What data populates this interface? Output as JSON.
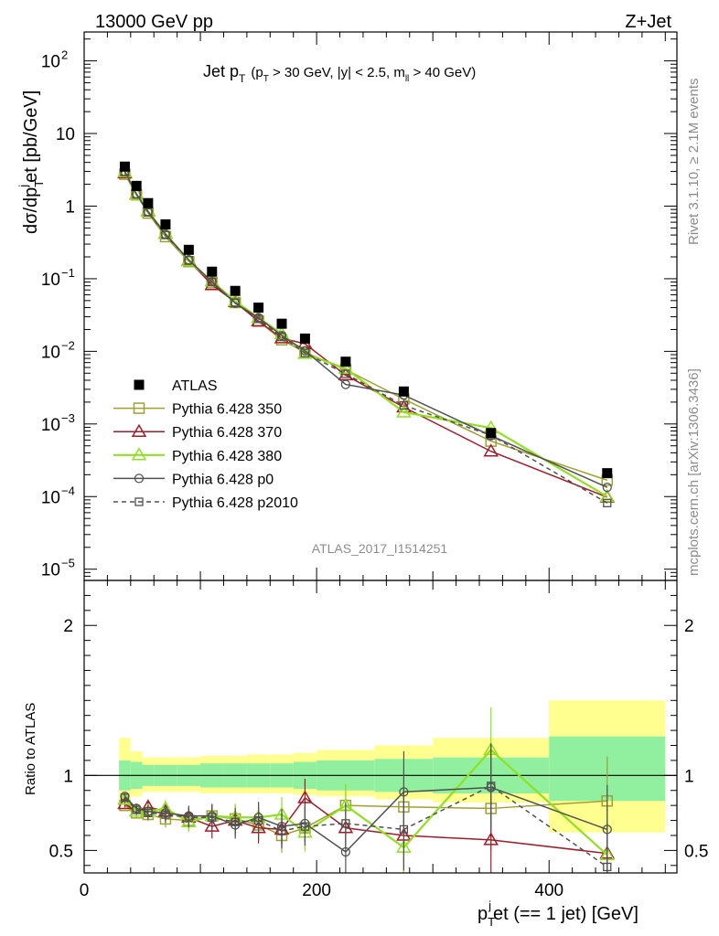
{
  "header": {
    "left": "13000 GeV pp",
    "right": "Z+Jet",
    "plot_title_main": "Jet p",
    "plot_title_sub": "T",
    "plot_title_detail_a": "(p",
    "plot_title_detail_b": "T",
    "plot_title_detail_c": " > 30 GeV, |y| < 2.5, m",
    "plot_title_detail_d": "ll",
    "plot_title_detail_e": " > 40 GeV)"
  },
  "side": {
    "rivet": "Rivet 3.1.10, ≥ 2.1M events",
    "mcplots": "mcplots.cern.ch [arXiv:1306.3436]"
  },
  "analysis_label": "ATLAS_2017_I1514251",
  "axes": {
    "ylabel_main": "dσ/dp",
    "ylabel_sub": "T",
    "ylabel_sup": "j",
    "ylabel_rest": "et [pb/GeV]",
    "ratio_ylabel": "Ratio to ATLAS",
    "xlabel_p": "p",
    "xlabel_sub": "T",
    "xlabel_sup": "j",
    "xlabel_rest": "et (== 1 jet) [GeV]"
  },
  "ticks": {
    "x": [
      "0",
      "200",
      "400"
    ],
    "main_y": [
      "10",
      "10",
      "10",
      "10",
      "1",
      "10",
      "10",
      "10",
      "10",
      "10",
      "10"
    ],
    "main_y_exp": [
      "2",
      "",
      "",
      "",
      "",
      "−1",
      "−2",
      "−3",
      "−4",
      "−5"
    ],
    "ratio_y": [
      "2",
      "1",
      "0.5"
    ]
  },
  "legend": [
    {
      "label": "ATLAS",
      "color": "#000000",
      "marker": "filled-square",
      "dash": false
    },
    {
      "label": "Pythia 6.428 350",
      "color": "#a0a030",
      "marker": "open-square",
      "dash": false
    },
    {
      "label": "Pythia 6.428 370",
      "color": "#a01c2a",
      "marker": "open-triangle",
      "dash": false
    },
    {
      "label": "Pythia 6.428 380",
      "color": "#90e020",
      "marker": "open-triangle",
      "dash": false
    },
    {
      "label": "Pythia 6.428 p0",
      "color": "#505050",
      "marker": "open-circle",
      "dash": false
    },
    {
      "label": "Pythia 6.428 p2010",
      "color": "#505050",
      "marker": "open-square-small",
      "dash": true
    }
  ],
  "chart_data": {
    "type": "scatter",
    "title": "Jet pT (pT > 30 GeV, |y| < 2.5, mll > 40 GeV)",
    "xlabel": "pTjet (== 1 jet) [GeV]",
    "ylabel": "dσ/dpTjet [pb/GeV]",
    "xlim": [
      0,
      510
    ],
    "ylim": [
      7e-06,
      250
    ],
    "yscale": "log",
    "ratio_ylim": [
      0.35,
      2.3
    ],
    "x": [
      35,
      45,
      55,
      70,
      90,
      110,
      130,
      150,
      170,
      190,
      225,
      275,
      350,
      450
    ],
    "bin_edges": [
      30,
      40,
      50,
      60,
      80,
      100,
      120,
      140,
      160,
      180,
      200,
      250,
      300,
      400,
      500
    ],
    "band_stat_lo": [
      0.9,
      0.91,
      0.93,
      0.93,
      0.93,
      0.92,
      0.92,
      0.92,
      0.92,
      0.91,
      0.9,
      0.89,
      0.88,
      0.83
    ],
    "band_stat_hi": [
      1.1,
      1.09,
      1.07,
      1.07,
      1.07,
      1.08,
      1.08,
      1.08,
      1.08,
      1.09,
      1.1,
      1.11,
      1.12,
      1.26
    ],
    "band_tot_lo": [
      0.82,
      0.86,
      0.89,
      0.89,
      0.89,
      0.88,
      0.88,
      0.88,
      0.88,
      0.87,
      0.86,
      0.84,
      0.82,
      0.62
    ],
    "band_tot_hi": [
      1.25,
      1.16,
      1.12,
      1.12,
      1.12,
      1.13,
      1.13,
      1.14,
      1.14,
      1.15,
      1.17,
      1.2,
      1.25,
      1.5
    ],
    "series": [
      {
        "name": "ATLAS",
        "values": [
          3.5,
          1.9,
          1.1,
          0.56,
          0.25,
          0.125,
          0.068,
          0.04,
          0.024,
          0.015,
          0.0072,
          0.0028,
          0.00075,
          0.00021
        ]
      },
      {
        "name": "Pythia 6.428 350",
        "values": [
          2.75,
          1.43,
          0.8,
          0.38,
          0.172,
          0.088,
          0.047,
          0.026,
          0.0144,
          0.0097,
          0.0056,
          0.0022,
          0.00058,
          0.000168
        ],
        "ratio": [
          0.8,
          0.75,
          0.74,
          0.71,
          0.7,
          0.73,
          0.71,
          0.67,
          0.6,
          0.65,
          0.8,
          0.79,
          0.78,
          0.83
        ]
      },
      {
        "name": "Pythia 6.428 370",
        "values": [
          2.85,
          1.45,
          0.85,
          0.42,
          0.178,
          0.082,
          0.048,
          0.026,
          0.0152,
          0.0127,
          0.0047,
          0.0017,
          0.00042,
          9.8e-05
        ],
        "ratio": [
          0.81,
          0.76,
          0.79,
          0.76,
          0.72,
          0.66,
          0.7,
          0.65,
          0.64,
          0.85,
          0.65,
          0.6,
          0.57,
          0.48
        ]
      },
      {
        "name": "Pythia 6.428 380",
        "values": [
          2.95,
          1.44,
          0.84,
          0.42,
          0.175,
          0.092,
          0.049,
          0.029,
          0.0175,
          0.0093,
          0.0058,
          0.00145,
          0.00088,
          0.0001
        ],
        "ratio": [
          0.84,
          0.76,
          0.76,
          0.78,
          0.69,
          0.73,
          0.72,
          0.72,
          0.74,
          0.62,
          0.8,
          0.52,
          1.17,
          0.47
        ]
      },
      {
        "name": "Pythia 6.428 p0",
        "values": [
          3.0,
          1.47,
          0.84,
          0.41,
          0.182,
          0.091,
          0.046,
          0.029,
          0.0165,
          0.0102,
          0.0035,
          0.0025,
          0.00069,
          0.000134
        ],
        "ratio": [
          0.86,
          0.78,
          0.76,
          0.75,
          0.73,
          0.73,
          0.67,
          0.72,
          0.66,
          0.68,
          0.49,
          0.89,
          0.92,
          0.64
        ]
      },
      {
        "name": "Pythia 6.428 p2010",
        "values": [
          2.95,
          1.46,
          0.82,
          0.4,
          0.18,
          0.09,
          0.047,
          0.028,
          0.0158,
          0.0095,
          0.0049,
          0.0018,
          0.0007,
          8.15e-05
        ],
        "ratio": [
          0.85,
          0.77,
          0.75,
          0.74,
          0.72,
          0.72,
          0.69,
          0.7,
          0.63,
          0.66,
          0.68,
          0.64,
          0.93,
          0.39
        ]
      }
    ]
  }
}
